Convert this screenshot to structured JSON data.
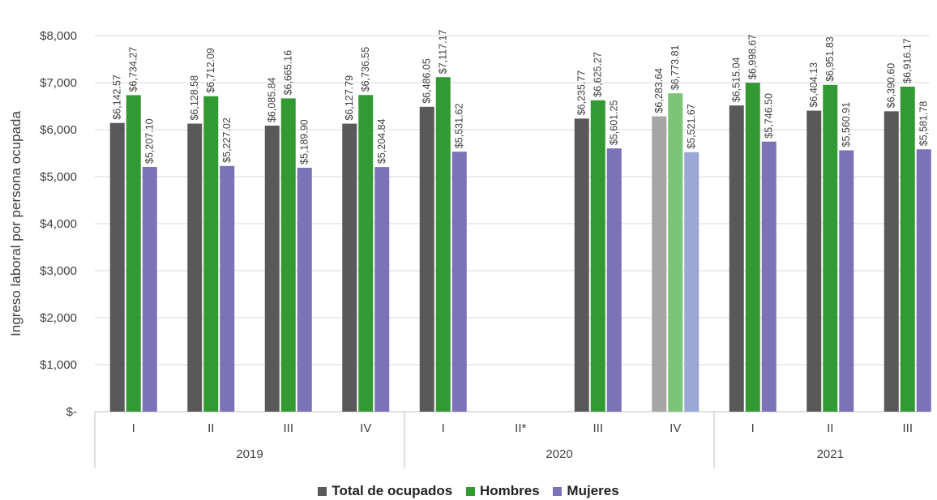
{
  "chart_data": {
    "type": "bar",
    "ylabel": "Ingreso laboral por persona ocupada",
    "ylim": [
      0,
      8000
    ],
    "yticks": [
      {
        "value": 0,
        "label": "$-"
      },
      {
        "value": 1000,
        "label": "$1,000"
      },
      {
        "value": 2000,
        "label": "$2,000"
      },
      {
        "value": 3000,
        "label": "$3,000"
      },
      {
        "value": 4000,
        "label": "$4,000"
      },
      {
        "value": 5000,
        "label": "$5,000"
      },
      {
        "value": 6000,
        "label": "$6,000"
      },
      {
        "value": 7000,
        "label": "$7,000"
      },
      {
        "value": 8000,
        "label": "$8,000"
      }
    ],
    "groups": [
      {
        "label": "2019",
        "categories": [
          "I",
          "II",
          "III",
          "IV"
        ]
      },
      {
        "label": "2020",
        "categories": [
          "I",
          "II*",
          "III",
          "IV"
        ]
      },
      {
        "label": "2021",
        "categories": [
          "I",
          "II",
          "III"
        ]
      }
    ],
    "categories": [
      "I",
      "II",
      "III",
      "IV",
      "I",
      "II*",
      "III",
      "IV",
      "I",
      "II",
      "III"
    ],
    "highlighted_category_index": 7,
    "series": [
      {
        "name": "Total de ocupados",
        "color": "#595959",
        "highlight_color": "#a6a6a6",
        "values": [
          6142.57,
          6128.58,
          6085.84,
          6127.79,
          6486.05,
          null,
          6235.77,
          6283.64,
          6515.04,
          6404.13,
          6390.6
        ],
        "labels": [
          "$6,142.57",
          "$6,128.58",
          "$6,085.84",
          "$6,127.79",
          "$6,486.05",
          "",
          "$6,235.77",
          "$6,283.64",
          "$6,515.04",
          "$6,404.13",
          "$6,390.60"
        ]
      },
      {
        "name": "Hombres",
        "color": "#339933",
        "highlight_color": "#7cc576",
        "values": [
          6734.27,
          6712.09,
          6665.16,
          6736.55,
          7117.17,
          null,
          6625.27,
          6773.81,
          6998.67,
          6951.83,
          6916.17
        ],
        "labels": [
          "$6,734.27",
          "$6,712.09",
          "$6,665.16",
          "$6,736.55",
          "$7,117.17",
          "",
          "$6,625.27",
          "$6,773.81",
          "$6,998.67",
          "$6,951.83",
          "$6,916.17"
        ]
      },
      {
        "name": "Mujeres",
        "color": "#7b72b8",
        "highlight_color": "#9aa8d6",
        "values": [
          5207.1,
          5227.02,
          5189.9,
          5204.84,
          5531.62,
          null,
          5601.25,
          5521.67,
          5746.5,
          5560.91,
          5581.78
        ],
        "labels": [
          "$5,207.10",
          "$5,227.02",
          "$5,189.90",
          "$5,204.84",
          "$5,531.62",
          "",
          "$5,601.25",
          "$5,521.67",
          "$5,746.50",
          "$5,560.91",
          "$5,581.78"
        ]
      }
    ],
    "legend_position": "bottom",
    "grid": true
  }
}
